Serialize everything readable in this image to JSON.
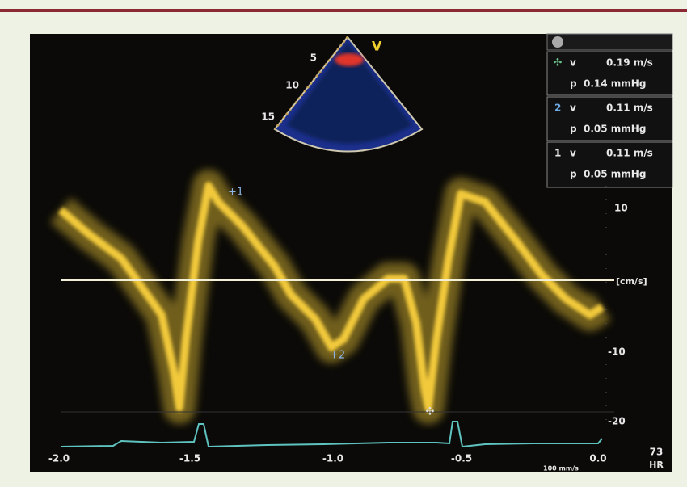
{
  "sector": {
    "label": "V",
    "depths": [
      "5",
      "10",
      "15"
    ]
  },
  "measurements": [
    {
      "v_label": "v",
      "v": "0.19 m/s",
      "p_label": "p",
      "p": "0.14 mmHg"
    },
    {
      "marker": "2",
      "v_label": "v",
      "v": "0.11 m/s",
      "p_label": "p",
      "p": "0.05 mmHg"
    },
    {
      "marker": "1",
      "v_label": "v",
      "v": "0.11 m/s",
      "p_label": "p",
      "p": "0.05 mmHg"
    }
  ],
  "velocity_scale": {
    "unit": "[cm/s]",
    "ticks": [
      "10",
      "-10",
      "-20"
    ]
  },
  "time_axis": {
    "ticks": [
      "-2.0",
      "-1.5",
      "-1.0",
      "-0.5",
      "0.0"
    ],
    "speed": "100 mm/s"
  },
  "heart_rate": {
    "value": "73",
    "label": "HR"
  },
  "cursors": [
    "+1",
    "+2"
  ]
}
